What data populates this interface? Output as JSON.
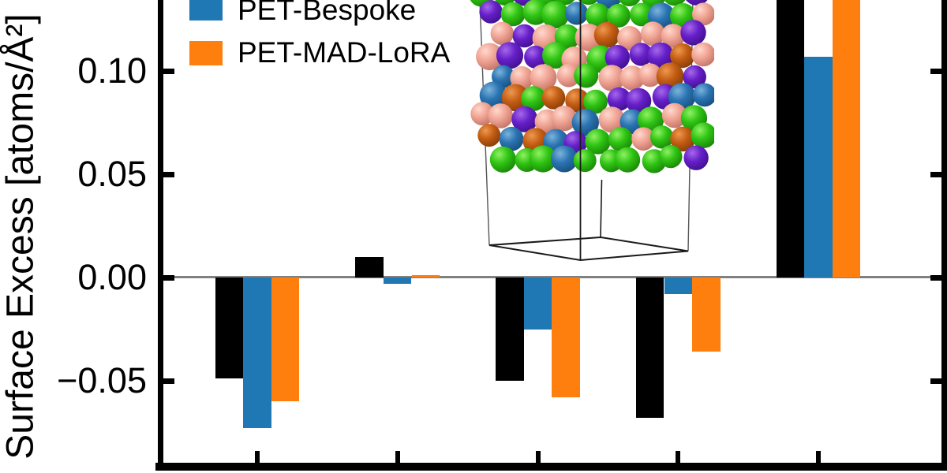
{
  "figure": {
    "y_axis": {
      "label": "Surface Excess [atoms/Å²]",
      "ticks": [
        {
          "label": "0.10",
          "value": 0.1
        },
        {
          "label": "0.05",
          "value": 0.05
        },
        {
          "label": "0.00",
          "value": 0.0
        },
        {
          "label": "−0.05",
          "value": -0.05
        }
      ]
    },
    "x_axis": {
      "n_ticks": 5,
      "labels_visible": false
    },
    "legend": {
      "entries": [
        {
          "label": "PET-Bespoke",
          "color": "#1f77b4"
        },
        {
          "label": "PET-MAD-LoRA",
          "color": "#ff7f0e"
        }
      ]
    },
    "inset": {
      "type": "3d-atomic-slab-in-simulation-box",
      "atom_colors": [
        "#2fc414",
        "#2a74b2",
        "#661fc9",
        "#f0a494",
        "#c45d13"
      ]
    },
    "colors": {
      "zero_line": "#808080",
      "axis": "#000000",
      "background": "#ffffff"
    }
  },
  "chart_data": {
    "type": "bar",
    "title": "",
    "xlabel": "",
    "ylabel": "Surface Excess [atoms/Å²]",
    "categories": [
      "",
      "",
      "",
      "",
      ""
    ],
    "series": [
      {
        "name": "",
        "legend_visible": false,
        "color": "#000000",
        "values": [
          -0.049,
          0.01,
          -0.05,
          -0.068,
          0.14
        ],
        "clipped_at_top": [
          false,
          false,
          false,
          false,
          true
        ]
      },
      {
        "name": "PET-Bespoke",
        "legend_visible": true,
        "color": "#1f77b4",
        "values": [
          -0.073,
          -0.003,
          -0.025,
          -0.008,
          0.107
        ],
        "clipped_at_top": [
          false,
          false,
          false,
          false,
          false
        ]
      },
      {
        "name": "PET-MAD-LoRA",
        "legend_visible": true,
        "color": "#ff7f0e",
        "values": [
          -0.06,
          0.001,
          -0.058,
          -0.036,
          0.14
        ],
        "clipped_at_top": [
          false,
          false,
          false,
          false,
          true
        ]
      }
    ],
    "ylim_visible": [
      -0.09,
      0.134
    ],
    "grid": "zero-line-only",
    "legend_position": "upper-left"
  }
}
